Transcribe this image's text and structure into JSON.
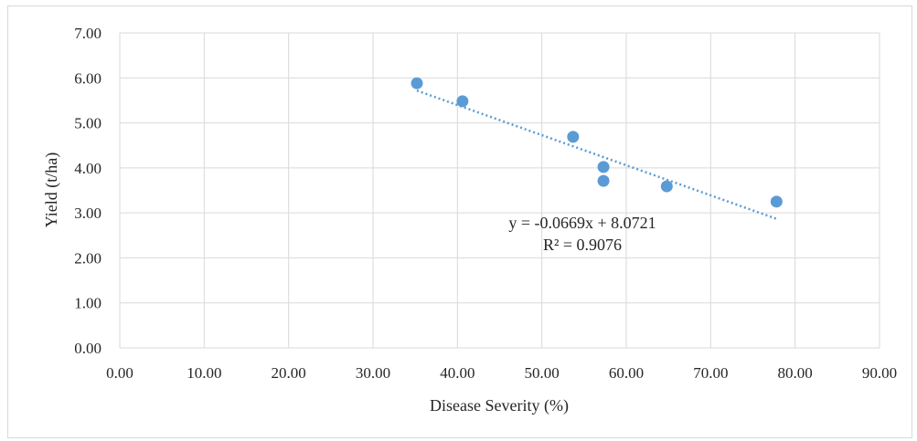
{
  "chart_data": {
    "type": "scatter",
    "xlabel": "Disease Severity (%)",
    "ylabel": "Yield (t/ha)",
    "xlim": [
      0,
      90
    ],
    "ylim": [
      0,
      7
    ],
    "x_ticks": [
      "0.00",
      "10.00",
      "20.00",
      "30.00",
      "40.00",
      "50.00",
      "60.00",
      "70.00",
      "80.00",
      "90.00"
    ],
    "y_ticks": [
      "0.00",
      "1.00",
      "2.00",
      "3.00",
      "4.00",
      "5.00",
      "6.00",
      "7.00"
    ],
    "grid": true,
    "marker_color": "#5b9bd5",
    "series": [
      {
        "points": [
          {
            "x": 35.2,
            "y": 5.88
          },
          {
            "x": 40.6,
            "y": 5.48
          },
          {
            "x": 53.7,
            "y": 4.69
          },
          {
            "x": 57.3,
            "y": 4.02
          },
          {
            "x": 57.3,
            "y": 3.71
          },
          {
            "x": 64.8,
            "y": 3.59
          },
          {
            "x": 77.8,
            "y": 3.25
          }
        ]
      }
    ],
    "trendline": {
      "type": "linear",
      "style": "dotted",
      "slope": -0.0669,
      "intercept": 8.0721,
      "x_start": 35.2,
      "x_end": 77.8,
      "equation_text": "y = -0.0669x + 8.0721",
      "r2_text": "R² = 0.9076"
    }
  }
}
